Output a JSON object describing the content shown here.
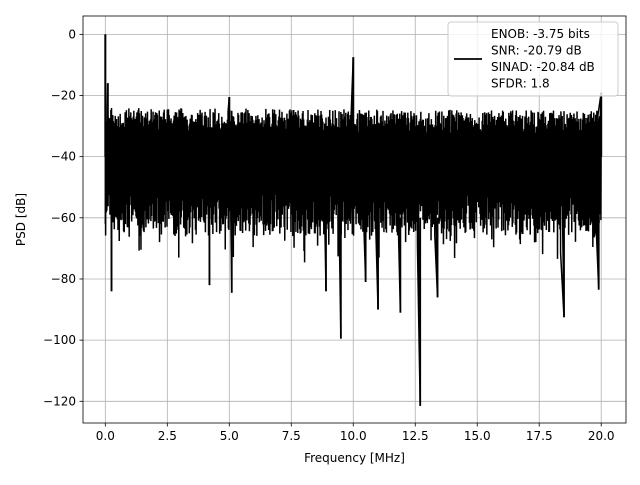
{
  "chart_data": {
    "type": "line",
    "title": "",
    "xlabel": "Frequency [MHz]",
    "ylabel": "PSD [dB]",
    "xlim": [
      -0.9,
      21.0
    ],
    "ylim": [
      -127.1,
      6.0
    ],
    "x_ticks": [
      0.0,
      2.5,
      5.0,
      7.5,
      10.0,
      12.5,
      15.0,
      17.5,
      20.0
    ],
    "x_tick_labels": [
      "0.0",
      "2.5",
      "5.0",
      "7.5",
      "10.0",
      "12.5",
      "15.0",
      "17.5",
      "20.0"
    ],
    "y_ticks": [
      0,
      -20,
      -40,
      -60,
      -80,
      -100,
      -120
    ],
    "y_tick_labels": [
      "0",
      "−20",
      "−40",
      "−60",
      "−80",
      "−100",
      "−120"
    ],
    "grid": true,
    "legend_position": "top-right",
    "legend_lines": [
      "ENOB: -3.75 bits",
      "SNR: -20.79 dB",
      "SINAD: -20.84 dB",
      "SFDR: 1.8"
    ],
    "series": [
      {
        "color": "#000000",
        "x_range_mhz": [
          0.0,
          20.0
        ],
        "envelope_upper_db": -24,
        "envelope_lower_db": -66,
        "peaks": [
          {
            "x": 0.0,
            "y": 0.0
          },
          {
            "x": 0.1,
            "y": -16.0
          },
          {
            "x": 5.0,
            "y": -20.5
          },
          {
            "x": 10.0,
            "y": -7.5
          },
          {
            "x": 20.0,
            "y": -19.0
          }
        ],
        "dips": [
          {
            "x": 0.25,
            "y": -84.0
          },
          {
            "x": 4.2,
            "y": -82.0
          },
          {
            "x": 5.1,
            "y": -84.5
          },
          {
            "x": 8.9,
            "y": -84.0
          },
          {
            "x": 9.5,
            "y": -99.5
          },
          {
            "x": 10.5,
            "y": -81.0
          },
          {
            "x": 11.0,
            "y": -90.0
          },
          {
            "x": 11.9,
            "y": -91.0
          },
          {
            "x": 12.7,
            "y": -121.5
          },
          {
            "x": 13.4,
            "y": -86.0
          },
          {
            "x": 18.5,
            "y": -92.5
          },
          {
            "x": 19.9,
            "y": -83.5
          }
        ]
      }
    ]
  }
}
